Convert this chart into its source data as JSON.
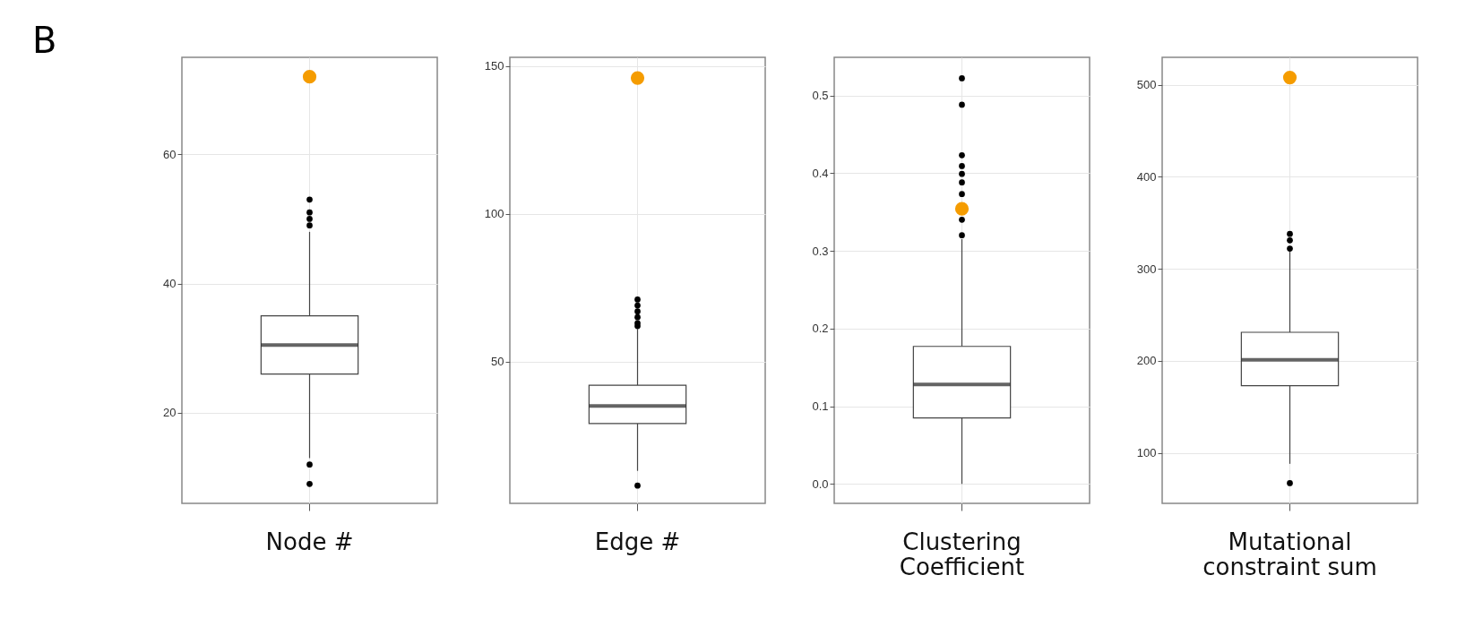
{
  "chart_data": [
    {
      "type": "box",
      "annotations": [
        "B"
      ],
      "categories": [
        "Node #"
      ],
      "boxes": [
        {
          "low": 13,
          "q1": 26,
          "median": 30.5,
          "q3": 35,
          "high": 48,
          "outliers": [
            53,
            51,
            50,
            49,
            12,
            9
          ]
        }
      ],
      "series": [
        {
          "type": "scatter",
          "color": "#f59c00",
          "x": [
            "Node #"
          ],
          "values": [
            72
          ]
        }
      ],
      "ylim": [
        6,
        75
      ],
      "yticks": [
        20,
        40,
        60
      ],
      "grid": true,
      "marker": "circle"
    },
    {
      "type": "box",
      "categories": [
        "Edge #"
      ],
      "boxes": [
        {
          "low": 13,
          "q1": 29,
          "median": 35,
          "q3": 42,
          "high": 61,
          "outliers": [
            71,
            69,
            67,
            65,
            63,
            62,
            8
          ]
        }
      ],
      "series": [
        {
          "type": "scatter",
          "color": "#f59c00",
          "x": [
            "Edge #"
          ],
          "values": [
            146
          ]
        }
      ],
      "ylim": [
        2,
        153
      ],
      "yticks": [
        50,
        100,
        150
      ],
      "grid": true,
      "marker": "circle"
    },
    {
      "type": "box",
      "categories": [
        "Clustering Coefficient"
      ],
      "boxes": [
        {
          "low": 0.0,
          "q1": 0.085,
          "median": 0.128,
          "q3": 0.177,
          "high": 0.315,
          "outliers": [
            0.522,
            0.488,
            0.423,
            0.409,
            0.399,
            0.388,
            0.373,
            0.34,
            0.32
          ]
        }
      ],
      "series": [
        {
          "type": "scatter",
          "color": "#f59c00",
          "x": [
            "Clustering Coefficient"
          ],
          "values": [
            0.354
          ]
        }
      ],
      "ylim": [
        -0.025,
        0.549
      ],
      "yticks": [
        {
          "value": 0,
          "label": "0.0"
        },
        0.1,
        0.2,
        0.3,
        0.4,
        0.5
      ],
      "grid": true,
      "marker": "circle"
    },
    {
      "type": "box",
      "categories": [
        "Mutational constraint sum"
      ],
      "boxes": [
        {
          "low": 88,
          "q1": 173,
          "median": 201,
          "q3": 231,
          "high": 319,
          "outliers": [
            338,
            331,
            322,
            67
          ]
        }
      ],
      "series": [
        {
          "type": "scatter",
          "color": "#f59c00",
          "x": [
            "Mutational constraint sum"
          ],
          "values": [
            508
          ]
        }
      ],
      "ylim": [
        45,
        530
      ],
      "yticks": [
        100,
        200,
        300,
        400,
        500
      ],
      "grid": true,
      "marker": "circle"
    }
  ]
}
